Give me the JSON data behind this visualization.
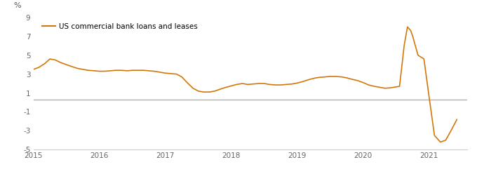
{
  "title": "",
  "ylabel_text": "%",
  "line_color": "#D4770A",
  "hline_color": "#B0B0B0",
  "hline_y": 0.3,
  "background_color": "#FFFFFF",
  "xlim_left": 2015.0,
  "xlim_right": 2021.58,
  "ylim_bottom": -5,
  "ylim_top": 9,
  "yticks": [
    -5,
    -3,
    -1,
    1,
    3,
    5,
    7,
    9
  ],
  "xticks": [
    2015,
    2016,
    2017,
    2018,
    2019,
    2020,
    2021
  ],
  "legend_label": "US commercial bank loans and leases",
  "series_x": [
    2015.0,
    2015.08,
    2015.17,
    2015.25,
    2015.33,
    2015.42,
    2015.5,
    2015.58,
    2015.67,
    2015.75,
    2015.83,
    2015.92,
    2016.0,
    2016.08,
    2016.17,
    2016.25,
    2016.33,
    2016.42,
    2016.5,
    2016.58,
    2016.67,
    2016.75,
    2016.83,
    2016.92,
    2017.0,
    2017.08,
    2017.17,
    2017.25,
    2017.33,
    2017.42,
    2017.5,
    2017.58,
    2017.67,
    2017.75,
    2017.83,
    2017.92,
    2018.0,
    2018.08,
    2018.17,
    2018.25,
    2018.33,
    2018.42,
    2018.5,
    2018.58,
    2018.67,
    2018.75,
    2018.83,
    2018.92,
    2019.0,
    2019.08,
    2019.17,
    2019.25,
    2019.33,
    2019.42,
    2019.5,
    2019.58,
    2019.67,
    2019.75,
    2019.83,
    2019.92,
    2020.0,
    2020.08,
    2020.17,
    2020.25,
    2020.33,
    2020.42,
    2020.5,
    2020.55,
    2020.58,
    2020.62,
    2020.67,
    2020.72,
    2020.75,
    2020.83,
    2020.92,
    2021.0,
    2021.08,
    2021.17,
    2021.25,
    2021.33,
    2021.42
  ],
  "series_y": [
    3.5,
    3.7,
    4.1,
    4.6,
    4.5,
    4.2,
    4.0,
    3.8,
    3.6,
    3.5,
    3.4,
    3.35,
    3.3,
    3.3,
    3.35,
    3.4,
    3.4,
    3.35,
    3.4,
    3.4,
    3.4,
    3.35,
    3.3,
    3.2,
    3.1,
    3.05,
    3.0,
    2.7,
    2.1,
    1.5,
    1.2,
    1.1,
    1.1,
    1.2,
    1.4,
    1.6,
    1.75,
    1.9,
    2.0,
    1.9,
    1.95,
    2.0,
    2.0,
    1.9,
    1.85,
    1.85,
    1.9,
    1.95,
    2.05,
    2.2,
    2.4,
    2.55,
    2.65,
    2.7,
    2.75,
    2.75,
    2.7,
    2.6,
    2.45,
    2.3,
    2.1,
    1.85,
    1.7,
    1.6,
    1.5,
    1.55,
    1.65,
    1.7,
    3.5,
    6.0,
    8.0,
    7.6,
    7.0,
    5.0,
    4.6,
    0.5,
    -3.5,
    -4.2,
    -4.0,
    -3.0,
    -1.8
  ]
}
